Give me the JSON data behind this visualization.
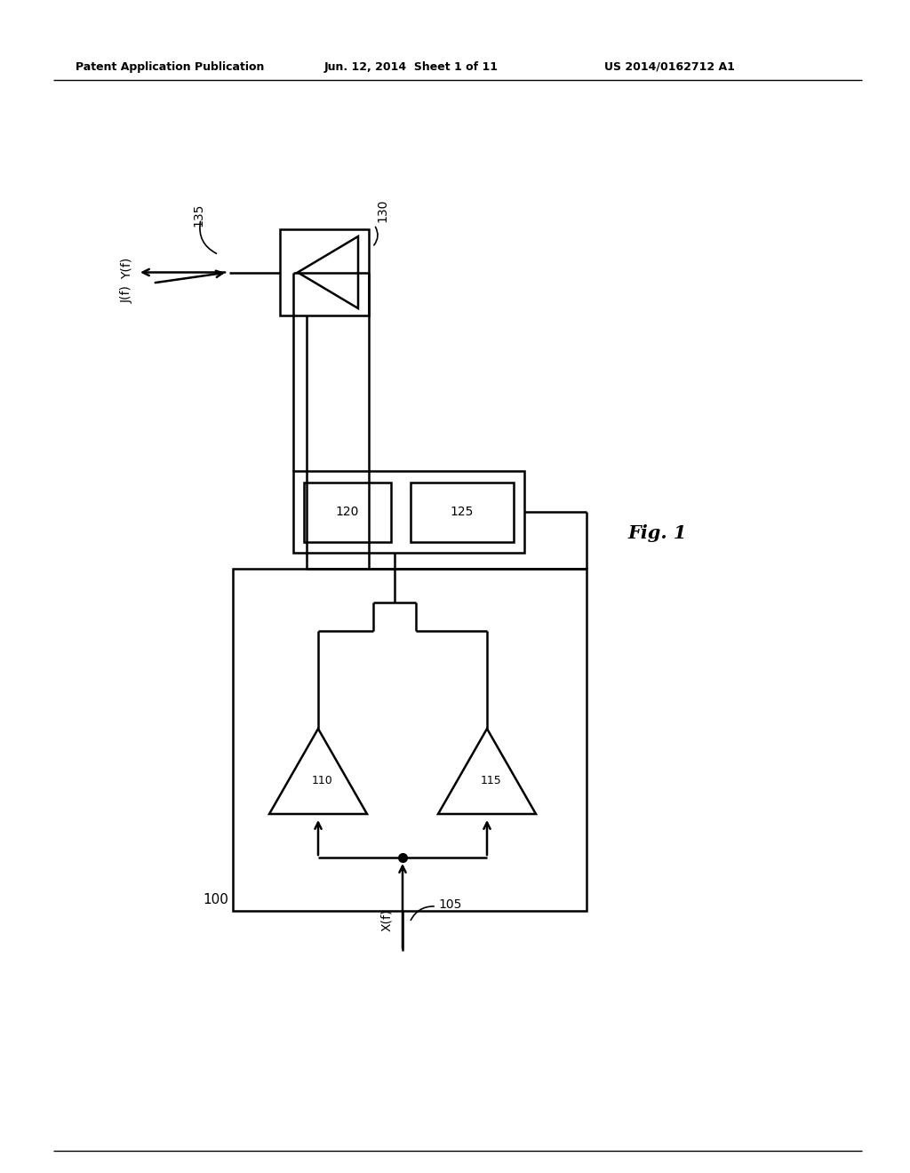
{
  "bg_color": "#ffffff",
  "line_color": "#000000",
  "header_left": "Patent Application Publication",
  "header_center": "Jun. 12, 2014  Sheet 1 of 11",
  "header_right": "US 2014/0162712 A1",
  "fig_label": "Fig. 1",
  "label_100": "100",
  "label_105": "105",
  "label_110": "110",
  "label_115": "115",
  "label_120": "120",
  "label_125": "125",
  "label_130": "130",
  "label_135": "135",
  "text_Xf": "X(f)",
  "text_Yf": "Y(f)",
  "text_Jf": "J(f)"
}
